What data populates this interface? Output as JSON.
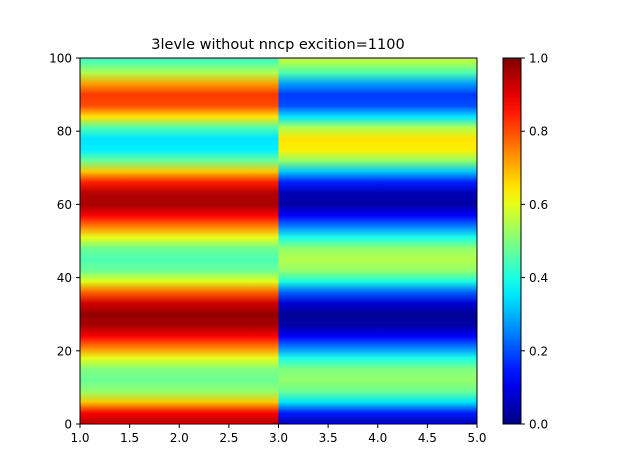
{
  "chart_data": {
    "type": "heatmap",
    "title": "3levle without nncp excition=1100",
    "xlabel": "",
    "ylabel": "",
    "xlim": [
      1.0,
      5.0
    ],
    "ylim": [
      0,
      100
    ],
    "x_ticks": [
      "1.0",
      "1.5",
      "2.0",
      "2.5",
      "3.0",
      "3.5",
      "4.0",
      "4.5",
      "5.0"
    ],
    "y_ticks": [
      "0",
      "20",
      "40",
      "60",
      "80",
      "100"
    ],
    "colormap": "jet",
    "colorbar": {
      "range": [
        0.0,
        1.0
      ],
      "ticks": [
        "0.0",
        "0.2",
        "0.4",
        "0.6",
        "0.8",
        "1.0"
      ]
    },
    "columns": [
      {
        "x_range": [
          1.0,
          3.0
        ],
        "profile_y": [
          0,
          3,
          6,
          9,
          12,
          15,
          18,
          21,
          24,
          27,
          30,
          33,
          36,
          39,
          42,
          45,
          48,
          51,
          54,
          57,
          60,
          63,
          66,
          69,
          72,
          75,
          78,
          81,
          84,
          87,
          90,
          93,
          96,
          99,
          100
        ],
        "profile_values": [
          0.95,
          0.88,
          0.68,
          0.52,
          0.48,
          0.5,
          0.6,
          0.75,
          0.88,
          0.96,
          0.98,
          0.92,
          0.78,
          0.6,
          0.48,
          0.45,
          0.48,
          0.6,
          0.75,
          0.88,
          0.96,
          0.95,
          0.85,
          0.68,
          0.48,
          0.36,
          0.35,
          0.45,
          0.65,
          0.8,
          0.82,
          0.72,
          0.55,
          0.45,
          0.44
        ]
      },
      {
        "x_range": [
          3.0,
          5.0
        ],
        "profile_y": [
          0,
          3,
          6,
          9,
          12,
          15,
          18,
          21,
          24,
          27,
          30,
          33,
          36,
          39,
          42,
          45,
          48,
          51,
          54,
          57,
          60,
          63,
          66,
          69,
          72,
          75,
          78,
          81,
          84,
          87,
          90,
          93,
          96,
          99,
          100
        ],
        "profile_values": [
          0.05,
          0.15,
          0.35,
          0.48,
          0.52,
          0.5,
          0.4,
          0.25,
          0.12,
          0.04,
          0.02,
          0.08,
          0.22,
          0.4,
          0.52,
          0.55,
          0.52,
          0.4,
          0.25,
          0.12,
          0.04,
          0.05,
          0.15,
          0.32,
          0.52,
          0.64,
          0.65,
          0.55,
          0.35,
          0.2,
          0.18,
          0.28,
          0.45,
          0.55,
          0.56
        ]
      }
    ]
  }
}
